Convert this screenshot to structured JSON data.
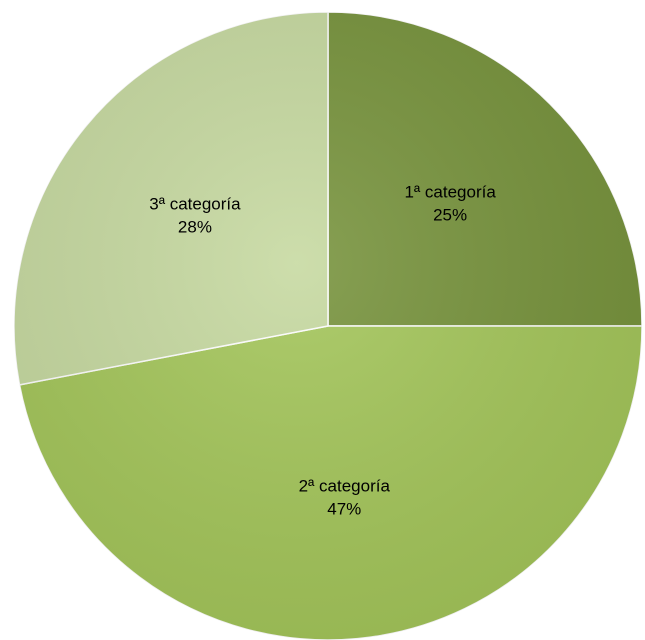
{
  "chart_data": {
    "type": "pie",
    "categories": [
      "1ª categoría",
      "2ª categoría",
      "3ª categoría"
    ],
    "values": [
      25,
      47,
      28
    ],
    "value_labels": [
      "25%",
      "47%",
      "28%"
    ],
    "colors": [
      "#77933c",
      "#a4c65a",
      "#c6d9a0"
    ]
  }
}
